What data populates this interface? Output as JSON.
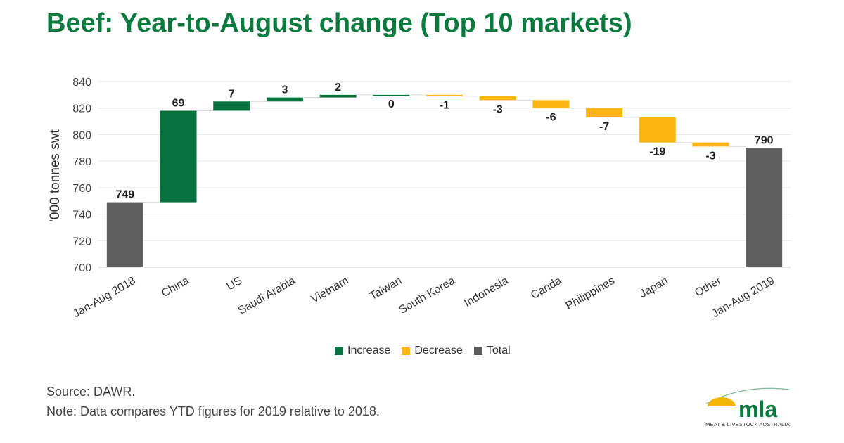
{
  "title": "Beef: Year-to-August change (Top 10 markets)",
  "chart_data": {
    "type": "waterfall",
    "ylabel": "'000 tonnes swt",
    "ylim": [
      700,
      840
    ],
    "yticks": [
      700,
      720,
      740,
      760,
      780,
      800,
      820,
      840
    ],
    "categories": [
      "Jan-Aug 2018",
      "China",
      "US",
      "Saudi Arabia",
      "Vietnam",
      "Taiwan",
      "South Korea",
      "Indonesia",
      "Canda",
      "Philippines",
      "Japan",
      "Other",
      "Jan-Aug 2019"
    ],
    "values": [
      749,
      69,
      7,
      3,
      2,
      0,
      -1,
      -3,
      -6,
      -7,
      -19,
      -3,
      790
    ],
    "kinds": [
      "total",
      "change",
      "change",
      "change",
      "change",
      "change",
      "change",
      "change",
      "change",
      "change",
      "change",
      "change",
      "total"
    ],
    "labels": [
      "749",
      "69",
      "7",
      "3",
      "2",
      "0",
      "-1",
      "-3",
      "-6",
      "-7",
      "-19",
      "-3",
      "790"
    ],
    "legend": [
      "Increase",
      "Decrease",
      "Total"
    ],
    "colors": {
      "increase": "#08733f",
      "decrease": "#fbb514",
      "total": "#5d5d5d"
    }
  },
  "footer": {
    "source": "Source: DAWR.",
    "note": "Note: Data compares YTD figures for 2019 relative to 2018."
  },
  "logo": {
    "text": "mla",
    "tagline": "MEAT & LIVESTOCK AUSTRALIA"
  }
}
